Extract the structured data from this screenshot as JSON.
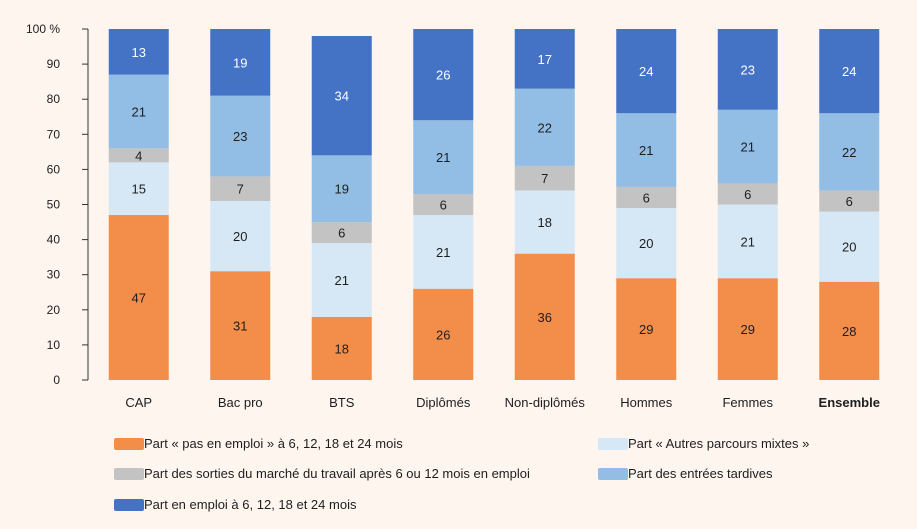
{
  "chart_data": {
    "type": "bar",
    "stacked": true,
    "categories": [
      "CAP",
      "Bac pro",
      "BTS",
      "Diplômés",
      "Non-diplômés",
      "Hommes",
      "Femmes",
      "Ensemble"
    ],
    "y_ticks": [
      "0",
      "10",
      "20",
      "30",
      "40",
      "50",
      "60",
      "70",
      "80",
      "90",
      "100 %"
    ],
    "ylim": [
      0,
      100
    ],
    "grid": false,
    "legend_position": "bottom",
    "series": [
      {
        "name": "Part « pas en emploi » à 6, 12, 18 et 24 mois",
        "color": "#f38d4a",
        "label_color": "#1e1e1e",
        "values": [
          47,
          31,
          18,
          26,
          36,
          29,
          29,
          28
        ]
      },
      {
        "name": "Part « Autres parcours mixtes »",
        "color": "#d6e8f6",
        "label_color": "#1e1e1e",
        "values": [
          15,
          20,
          21,
          21,
          18,
          20,
          21,
          20
        ]
      },
      {
        "name": "Part des sorties du marché du travail après 6 ou 12 mois en emploi",
        "color": "#c3c3c3",
        "label_color": "#1e1e1e",
        "values": [
          4,
          7,
          6,
          6,
          7,
          6,
          6,
          6
        ]
      },
      {
        "name": "Part des entrées tardives",
        "color": "#92bde4",
        "label_color": "#1e1e1e",
        "values": [
          21,
          23,
          19,
          21,
          22,
          21,
          21,
          22
        ]
      },
      {
        "name": "Part en emploi à 6, 12, 18 et 24 mois",
        "color": "#4472c4",
        "label_color": "#ffffff",
        "values": [
          13,
          19,
          34,
          26,
          17,
          24,
          23,
          24
        ]
      }
    ]
  },
  "legend": {
    "items": [
      {
        "label": "Part « pas en emploi » à 6, 12, 18 et 24 mois",
        "color": "#f38d4a"
      },
      {
        "label": "Part « Autres parcours mixtes »",
        "color": "#d6e8f6"
      },
      {
        "label": "Part des sorties du marché du travail après 6 ou 12 mois en emploi",
        "color": "#c3c3c3"
      },
      {
        "label": "Part des entrées tardives",
        "color": "#92bde4"
      },
      {
        "label": "Part en emploi à 6, 12, 18 et 24 mois",
        "color": "#4472c4"
      }
    ]
  }
}
